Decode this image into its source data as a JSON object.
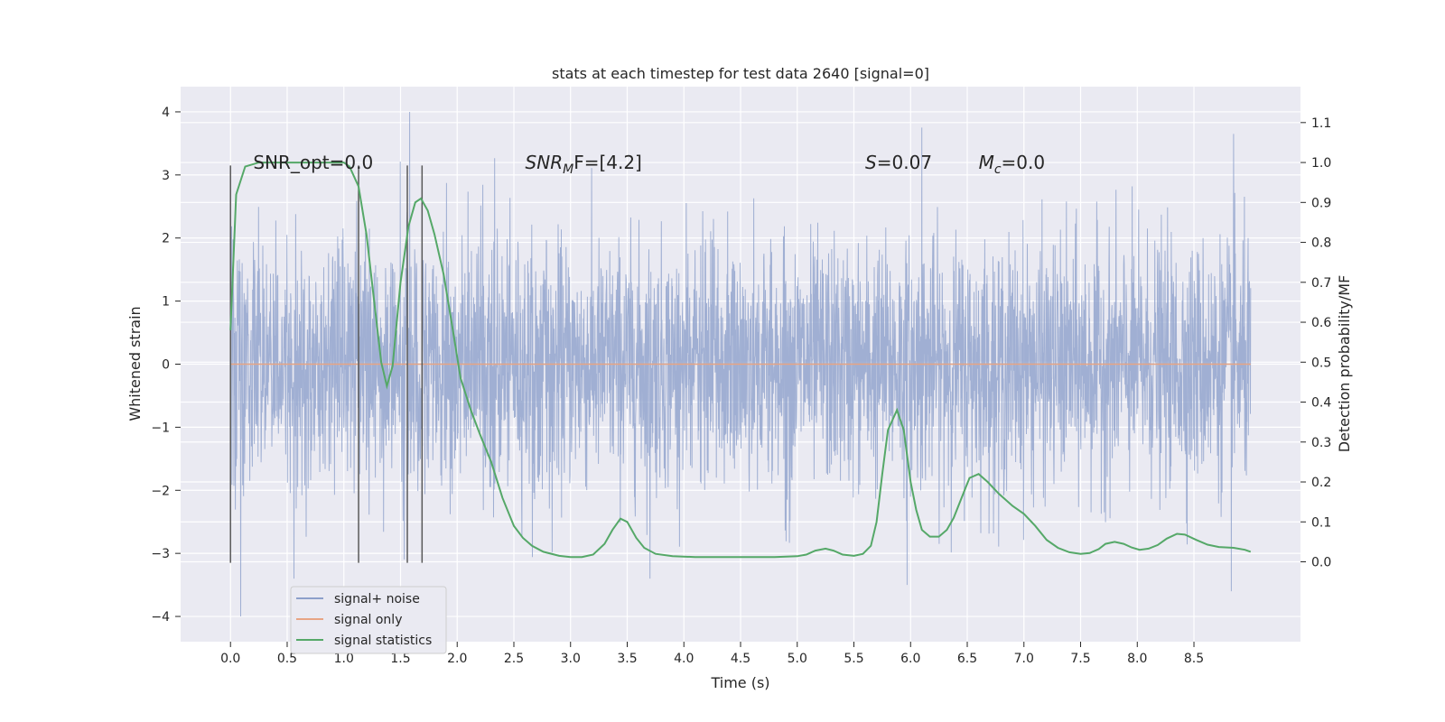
{
  "chart_data": {
    "type": "line",
    "title": "stats at each timestep for test data 2640 [signal=0]",
    "xlabel": "Time (s)",
    "ylabel_left": "Whitened strain",
    "ylabel_right": "Detection probability/MF",
    "xlim": [
      -0.44,
      9.44
    ],
    "ylim_left": [
      -4.4,
      4.4
    ],
    "ylim_right": [
      -0.2,
      1.19
    ],
    "x_ticks": [
      "0.0",
      "0.5",
      "1.0",
      "1.5",
      "2.0",
      "2.5",
      "3.0",
      "3.5",
      "4.0",
      "4.5",
      "5.0",
      "5.5",
      "6.0",
      "6.5",
      "7.0",
      "7.5",
      "8.0",
      "8.5"
    ],
    "y_left_ticks": [
      "4",
      "3",
      "2",
      "1",
      "0",
      "−1",
      "−2",
      "−3",
      "−4"
    ],
    "y_right_ticks": [
      "1.1",
      "1.0",
      "0.9",
      "0.8",
      "0.7",
      "0.6",
      "0.5",
      "0.4",
      "0.3",
      "0.2",
      "0.1",
      "0.0"
    ],
    "grid": true,
    "legend_position": "bottom-left",
    "series": [
      {
        "name": "signal+ noise",
        "color": "#8da0cb",
        "x_range": [
          0.0,
          9.0
        ],
        "typical_band": [
          -1.3,
          1.3
        ],
        "extremes": [
          {
            "x": 0.09,
            "y": -4.0
          },
          {
            "x": 0.56,
            "y": -3.4
          },
          {
            "x": 1.58,
            "y": 4.0
          },
          {
            "x": 3.7,
            "y": -3.4
          },
          {
            "x": 5.97,
            "y": -3.5
          },
          {
            "x": 6.1,
            "y": 3.75
          },
          {
            "x": 8.85,
            "y": 3.65
          },
          {
            "x": 8.83,
            "y": -3.6
          }
        ]
      },
      {
        "name": "signal only",
        "color": "#e8a584",
        "points": [
          [
            0.0,
            0.0
          ],
          [
            9.0,
            0.0
          ]
        ]
      },
      {
        "name": "signal statistics",
        "color": "#55a868",
        "axis": "right",
        "points": [
          [
            0.0,
            0.58
          ],
          [
            0.05,
            0.92
          ],
          [
            0.13,
            0.99
          ],
          [
            0.25,
            1.0
          ],
          [
            0.5,
            1.0
          ],
          [
            0.75,
            1.0
          ],
          [
            1.0,
            1.0
          ],
          [
            1.05,
            0.99
          ],
          [
            1.13,
            0.94
          ],
          [
            1.2,
            0.82
          ],
          [
            1.26,
            0.67
          ],
          [
            1.33,
            0.5
          ],
          [
            1.38,
            0.44
          ],
          [
            1.43,
            0.49
          ],
          [
            1.5,
            0.7
          ],
          [
            1.57,
            0.84
          ],
          [
            1.63,
            0.9
          ],
          [
            1.68,
            0.91
          ],
          [
            1.74,
            0.88
          ],
          [
            1.8,
            0.82
          ],
          [
            1.88,
            0.72
          ],
          [
            1.95,
            0.6
          ],
          [
            2.03,
            0.46
          ],
          [
            2.12,
            0.38
          ],
          [
            2.2,
            0.32
          ],
          [
            2.3,
            0.25
          ],
          [
            2.4,
            0.16
          ],
          [
            2.5,
            0.09
          ],
          [
            2.58,
            0.06
          ],
          [
            2.66,
            0.04
          ],
          [
            2.76,
            0.025
          ],
          [
            2.9,
            0.015
          ],
          [
            3.0,
            0.012
          ],
          [
            3.1,
            0.012
          ],
          [
            3.2,
            0.018
          ],
          [
            3.3,
            0.045
          ],
          [
            3.37,
            0.08
          ],
          [
            3.44,
            0.108
          ],
          [
            3.5,
            0.1
          ],
          [
            3.58,
            0.06
          ],
          [
            3.65,
            0.035
          ],
          [
            3.75,
            0.02
          ],
          [
            3.9,
            0.014
          ],
          [
            4.1,
            0.012
          ],
          [
            4.5,
            0.012
          ],
          [
            4.8,
            0.012
          ],
          [
            5.0,
            0.014
          ],
          [
            5.08,
            0.018
          ],
          [
            5.16,
            0.028
          ],
          [
            5.25,
            0.033
          ],
          [
            5.32,
            0.028
          ],
          [
            5.4,
            0.018
          ],
          [
            5.5,
            0.015
          ],
          [
            5.58,
            0.02
          ],
          [
            5.65,
            0.04
          ],
          [
            5.7,
            0.1
          ],
          [
            5.75,
            0.22
          ],
          [
            5.8,
            0.33
          ],
          [
            5.88,
            0.38
          ],
          [
            5.94,
            0.33
          ],
          [
            6.0,
            0.2
          ],
          [
            6.05,
            0.13
          ],
          [
            6.1,
            0.08
          ],
          [
            6.17,
            0.063
          ],
          [
            6.25,
            0.063
          ],
          [
            6.32,
            0.08
          ],
          [
            6.38,
            0.11
          ],
          [
            6.45,
            0.16
          ],
          [
            6.52,
            0.21
          ],
          [
            6.6,
            0.22
          ],
          [
            6.68,
            0.2
          ],
          [
            6.78,
            0.17
          ],
          [
            6.9,
            0.14
          ],
          [
            7.0,
            0.12
          ],
          [
            7.1,
            0.09
          ],
          [
            7.2,
            0.055
          ],
          [
            7.3,
            0.035
          ],
          [
            7.4,
            0.024
          ],
          [
            7.5,
            0.02
          ],
          [
            7.58,
            0.022
          ],
          [
            7.66,
            0.032
          ],
          [
            7.72,
            0.045
          ],
          [
            7.8,
            0.05
          ],
          [
            7.88,
            0.045
          ],
          [
            7.95,
            0.036
          ],
          [
            8.02,
            0.03
          ],
          [
            8.1,
            0.033
          ],
          [
            8.18,
            0.042
          ],
          [
            8.26,
            0.058
          ],
          [
            8.35,
            0.07
          ],
          [
            8.42,
            0.068
          ],
          [
            8.52,
            0.055
          ],
          [
            8.62,
            0.043
          ],
          [
            8.72,
            0.037
          ],
          [
            8.85,
            0.035
          ],
          [
            8.95,
            0.03
          ],
          [
            9.0,
            0.025
          ]
        ]
      }
    ],
    "vertical_lines": [
      {
        "x": 0.0,
        "y_range": [
          -3.15,
          3.15
        ],
        "color": "#595959"
      },
      {
        "x": 1.13,
        "y_range": [
          -3.15,
          3.15
        ],
        "color": "#595959"
      },
      {
        "x": 1.56,
        "y_range": [
          -3.15,
          3.15
        ],
        "color": "#595959"
      },
      {
        "x": 1.69,
        "y_range": [
          -3.15,
          3.15
        ],
        "color": "#595959"
      }
    ],
    "annotations": [
      {
        "x": 0.2,
        "y": 3.2,
        "text": "SNR_opt=0.0"
      },
      {
        "x": 2.6,
        "y": 3.2,
        "base": "SNR",
        "sub": "M",
        "rest": "F=[4.2]"
      },
      {
        "x": 5.6,
        "y": 3.2,
        "base": "S",
        "sub": "",
        "rest": "=0.07"
      },
      {
        "x": 6.6,
        "y": 3.2,
        "base": "M",
        "sub": "c",
        "rest": "=0.0"
      }
    ]
  }
}
